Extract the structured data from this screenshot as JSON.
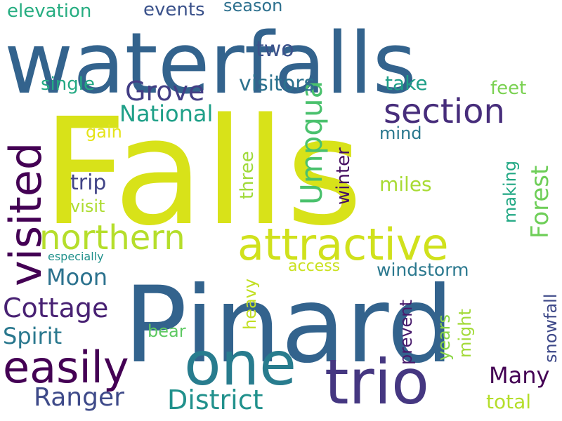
{
  "words": [
    {
      "text": "Falls",
      "color": "#d8e219"
    },
    {
      "text": "Pinard",
      "color": "#33638d"
    },
    {
      "text": "waterfalls",
      "color": "#33638d"
    },
    {
      "text": "trio",
      "color": "#453781"
    },
    {
      "text": "one",
      "color": "#287c8e"
    },
    {
      "text": "attractive",
      "color": "#d0e11c"
    },
    {
      "text": "visited",
      "color": "#440154"
    },
    {
      "text": "easily",
      "color": "#440154"
    },
    {
      "text": "northern",
      "color": "#b5de2b"
    },
    {
      "text": "section",
      "color": "#472d7b"
    },
    {
      "text": "Umpqua",
      "color": "#4ac16d"
    },
    {
      "text": "Cottage",
      "color": "#482173"
    },
    {
      "text": "District",
      "color": "#21918c"
    },
    {
      "text": "Grove",
      "color": "#433e85"
    },
    {
      "text": "Forest",
      "color": "#6ece58"
    },
    {
      "text": "Ranger",
      "color": "#3e4a89"
    },
    {
      "text": "National",
      "color": "#1fa088"
    },
    {
      "text": "Many",
      "color": "#440154"
    },
    {
      "text": "Spirit",
      "color": "#2a788e"
    },
    {
      "text": "Moon",
      "color": "#2c728e"
    },
    {
      "text": "windstorm",
      "color": "#2a788e"
    },
    {
      "text": "visitors",
      "color": "#2c728e"
    },
    {
      "text": "two",
      "color": "#3b528b"
    },
    {
      "text": "trip",
      "color": "#414487"
    },
    {
      "text": "winter",
      "color": "#471063"
    },
    {
      "text": "snowfall",
      "color": "#3e4989"
    },
    {
      "text": "three",
      "color": "#a0da39"
    },
    {
      "text": "making",
      "color": "#22a884"
    },
    {
      "text": "prevent",
      "color": "#481a6c"
    },
    {
      "text": "miles",
      "color": "#a8db34"
    },
    {
      "text": "single",
      "color": "#23a983"
    },
    {
      "text": "take",
      "color": "#1f9f88"
    },
    {
      "text": "total",
      "color": "#b5de2b"
    },
    {
      "text": "heavy",
      "color": "#c2df23"
    },
    {
      "text": "elevation",
      "color": "#26ad81"
    },
    {
      "text": "events",
      "color": "#3b528b"
    },
    {
      "text": "season",
      "color": "#2d708e"
    },
    {
      "text": "years",
      "color": "#8bd646"
    },
    {
      "text": "feet",
      "color": "#7ad151"
    },
    {
      "text": "might",
      "color": "#a2da37"
    },
    {
      "text": "mind",
      "color": "#2a788e"
    },
    {
      "text": "access",
      "color": "#cae11f"
    },
    {
      "text": "gain",
      "color": "#e5e419"
    },
    {
      "text": "visit",
      "color": "#addc30"
    },
    {
      "text": "bear",
      "color": "#5ec962"
    },
    {
      "text": "especially",
      "color": "#21918c"
    }
  ]
}
